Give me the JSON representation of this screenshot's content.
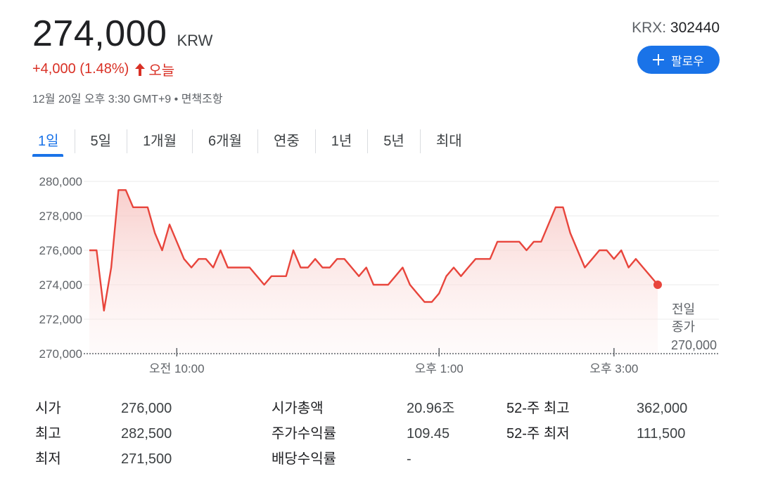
{
  "quote": {
    "price": "274,000",
    "currency": "KRW",
    "change": "+4,000 (1.48%)",
    "change_direction_icon": "arrow-up-icon",
    "period_label": "오늘",
    "timestamp": "12월 20일 오후 3:30 GMT+9",
    "disclaimer": "면책조항",
    "exchange": "KRX",
    "ticker": "302440",
    "follow_label": "팔로우"
  },
  "tabs": [
    "1일",
    "5일",
    "1개월",
    "6개월",
    "연중",
    "1년",
    "5년",
    "최대"
  ],
  "active_tab": "1일",
  "colors": {
    "accent": "#1a73e8",
    "positive": "#d93025",
    "line": "#e8453c",
    "fill_top": "#f7c6c3"
  },
  "prev_close": {
    "label_line1": "전일",
    "label_line2": "종가",
    "value": "270,000"
  },
  "chart_data": {
    "type": "area",
    "y_ticks": [
      "280,000",
      "278,000",
      "276,000",
      "274,000",
      "272,000",
      "270,000"
    ],
    "ylim": [
      270000,
      280000
    ],
    "x_ticks": [
      "오전 10:00",
      "오후 1:00",
      "오후 3:00"
    ],
    "x_tick_values": [
      10.0,
      13.0,
      15.0
    ],
    "xlim": [
      9.0,
      16.2
    ],
    "baseline": 270000,
    "x": [
      9.0,
      9.083,
      9.167,
      9.25,
      9.333,
      9.417,
      9.5,
      9.583,
      9.667,
      9.75,
      9.833,
      9.917,
      10.0,
      10.083,
      10.167,
      10.25,
      10.333,
      10.417,
      10.5,
      10.583,
      10.667,
      10.75,
      10.833,
      10.917,
      11.0,
      11.083,
      11.167,
      11.25,
      11.333,
      11.417,
      11.5,
      11.583,
      11.667,
      11.75,
      11.833,
      11.917,
      12.0,
      12.083,
      12.167,
      12.25,
      12.333,
      12.417,
      12.5,
      12.583,
      12.667,
      12.75,
      12.833,
      12.917,
      13.0,
      13.083,
      13.167,
      13.25,
      13.333,
      13.417,
      13.5,
      13.583,
      13.667,
      13.75,
      13.833,
      13.917,
      14.0,
      14.083,
      14.167,
      14.25,
      14.333,
      14.417,
      14.5,
      14.583,
      14.667,
      14.75,
      14.833,
      14.917,
      15.0,
      15.083,
      15.167,
      15.25,
      15.333,
      15.417,
      15.5
    ],
    "values": [
      276000,
      276000,
      272500,
      275000,
      279500,
      279500,
      278500,
      278500,
      278500,
      277000,
      276000,
      277500,
      276500,
      275500,
      275000,
      275500,
      275500,
      275000,
      276000,
      275000,
      275000,
      275000,
      275000,
      274500,
      274000,
      274500,
      274500,
      274500,
      276000,
      275000,
      275000,
      275500,
      275000,
      275000,
      275500,
      275500,
      275000,
      274500,
      275000,
      274000,
      274000,
      274000,
      274500,
      275000,
      274000,
      273500,
      273000,
      273000,
      273500,
      274500,
      275000,
      274500,
      275000,
      275500,
      275500,
      275500,
      276500,
      276500,
      276500,
      276500,
      276000,
      276500,
      276500,
      277500,
      278500,
      278500,
      277000,
      276000,
      275000,
      275500,
      276000,
      276000,
      275500,
      276000,
      275000,
      275500,
      275000,
      274500,
      274000
    ]
  },
  "stats": [
    {
      "label": "시가",
      "value": "276,000"
    },
    {
      "label": "최고",
      "value": "282,500"
    },
    {
      "label": "최저",
      "value": "271,500"
    },
    {
      "label": "시가총액",
      "value": "20.96조"
    },
    {
      "label": "주가수익률",
      "value": "109.45"
    },
    {
      "label": "배당수익률",
      "value": "-"
    },
    {
      "label": "52-주 최고",
      "value": "362,000"
    },
    {
      "label": "52-주 최저",
      "value": "111,500"
    }
  ]
}
